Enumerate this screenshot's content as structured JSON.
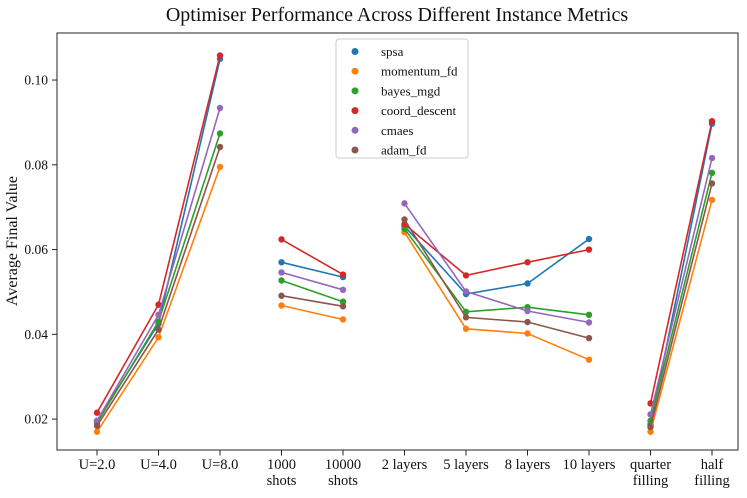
{
  "chart_data": {
    "type": "line",
    "title": "Optimiser Performance Across Different Instance Metrics",
    "ylabel": "Average Final Value",
    "xlabel": "",
    "categories": [
      "U=2.0",
      "U=4.0",
      "U=8.0",
      "1000\nshots",
      "10000\nshots",
      "2 layers",
      "5 layers",
      "8 layers",
      "10 layers",
      "quarter\nfilling",
      "half\nfilling"
    ],
    "category_groups": [
      [
        0,
        1,
        2
      ],
      [
        3,
        4
      ],
      [
        5,
        6,
        7,
        8
      ],
      [
        9,
        10
      ]
    ],
    "yticks": [
      0.02,
      0.04,
      0.06,
      0.08,
      0.1
    ],
    "ylim": [
      0.0127,
      0.1111
    ],
    "grid": false,
    "legend_position": "upper-center-inside",
    "axis_color": "#262626",
    "legend_border_color": "#cccccc",
    "series": [
      {
        "name": "spsa",
        "color": "#1f77b4",
        "values": [
          0.0195,
          0.0425,
          0.105,
          0.057,
          0.0535,
          0.0655,
          0.0495,
          0.052,
          0.0625,
          0.0187,
          0.0897
        ]
      },
      {
        "name": "momentum_fd",
        "color": "#ff7f0e",
        "values": [
          0.017,
          0.0393,
          0.0795,
          0.0468,
          0.0435,
          0.0641,
          0.0413,
          0.0402,
          0.034,
          0.017,
          0.0717
        ]
      },
      {
        "name": "bayes_mgd",
        "color": "#2ca02c",
        "values": [
          0.0191,
          0.043,
          0.0874,
          0.0527,
          0.0477,
          0.0649,
          0.0453,
          0.0464,
          0.0446,
          0.0196,
          0.0781
        ]
      },
      {
        "name": "coord_descent",
        "color": "#d62728",
        "values": [
          0.0215,
          0.047,
          0.1058,
          0.0624,
          0.0541,
          0.066,
          0.0539,
          0.057,
          0.06,
          0.0237,
          0.0903
        ]
      },
      {
        "name": "cmaes",
        "color": "#9467bd",
        "values": [
          0.0196,
          0.0446,
          0.0934,
          0.0546,
          0.0505,
          0.0709,
          0.0501,
          0.0455,
          0.0428,
          0.0211,
          0.0816
        ]
      },
      {
        "name": "adam_fd",
        "color": "#8c564b",
        "values": [
          0.0184,
          0.0411,
          0.0842,
          0.0491,
          0.0466,
          0.0671,
          0.044,
          0.0429,
          0.0391,
          0.0181,
          0.0756
        ]
      }
    ]
  }
}
